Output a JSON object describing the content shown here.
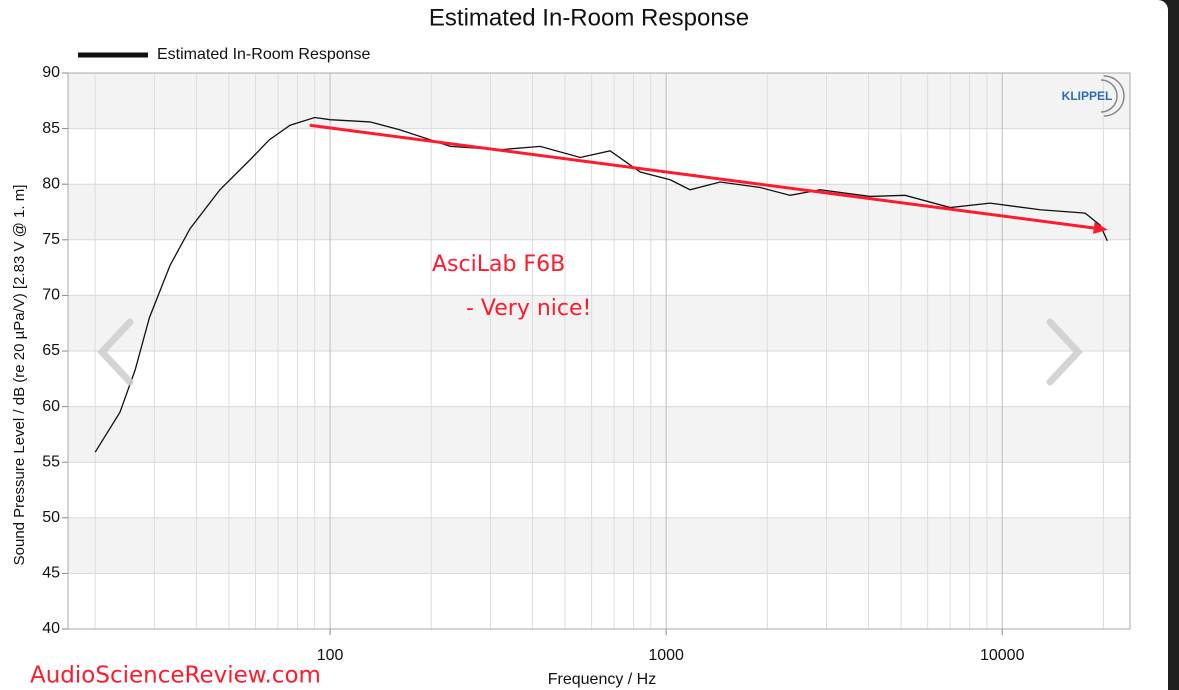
{
  "chart_data": {
    "type": "line",
    "title": "Estimated In-Room Response",
    "x_label": "Frequency / Hz",
    "y_label": "Sound Pressure Level / dB (re 20 µPa/V)  [2.83  V @ 1. m]",
    "xscale": "log",
    "xlim": [
      16.6,
      24000
    ],
    "ylim": [
      40,
      90
    ],
    "xticks": [
      100,
      1000,
      10000
    ],
    "yticks": [
      40,
      45,
      50,
      55,
      60,
      65,
      70,
      75,
      80,
      85,
      90
    ],
    "grid": true,
    "legend": "top-left",
    "series": [
      {
        "name": "Estimated In-Room Response",
        "color": "#111111",
        "x": [
          20,
          23.7,
          26.3,
          29,
          33.4,
          38.3,
          47,
          57.8,
          66,
          76,
          90,
          100,
          131.5,
          161,
          228,
          320,
          422,
          555,
          681,
          837,
          1028,
          1178,
          1448,
          1905,
          2339,
          2873,
          4046,
          5140,
          7000,
          9200,
          12980,
          17650,
          19580,
          20550
        ],
        "values": [
          55.9,
          59.5,
          63.3,
          68,
          72.7,
          76,
          79.5,
          82.2,
          84,
          85.3,
          86,
          85.8,
          85.6,
          84.9,
          83.4,
          83.1,
          83.4,
          82.4,
          83,
          81.1,
          80.4,
          79.5,
          80.2,
          79.7,
          79,
          79.5,
          78.9,
          79,
          77.9,
          78.3,
          77.7,
          77.4,
          76.3,
          74.9
        ]
      }
    ],
    "trend_line": {
      "x": [
        87,
        20600
      ],
      "values": [
        85.3,
        75.9
      ],
      "color": "#ff1a2e"
    },
    "annotations": [
      "AsciLab F6B",
      "-   Very nice!"
    ],
    "logo": "KLIPPEL",
    "watermark": "AudioScienceReview.com"
  }
}
